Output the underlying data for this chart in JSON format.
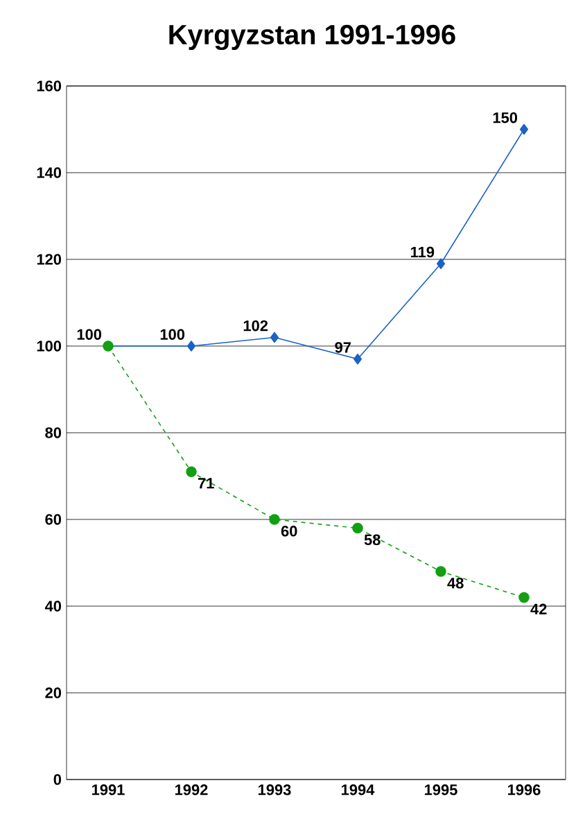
{
  "chart_data": {
    "type": "line",
    "title": "Kyrgyzstan 1991-1996",
    "categories": [
      "1991",
      "1992",
      "1993",
      "1994",
      "1995",
      "1996"
    ],
    "series": [
      {
        "color": "#1a62c8",
        "values": [
          100,
          100,
          102,
          97,
          119,
          150
        ],
        "value_labels": [
          "100",
          "100",
          "102",
          "97",
          "119",
          "150"
        ],
        "marker": "diamond",
        "line_style": "solid"
      },
      {
        "color": "#12a012",
        "values": [
          100,
          71,
          60,
          58,
          48,
          42
        ],
        "value_labels": [
          null,
          "71",
          "60",
          "58",
          "48",
          "42"
        ],
        "marker": "circle",
        "line_style": "dashed"
      }
    ],
    "ylim": [
      0,
      160
    ],
    "yticks": [
      0,
      20,
      40,
      60,
      80,
      100,
      120,
      140,
      160
    ],
    "grid": "y"
  }
}
